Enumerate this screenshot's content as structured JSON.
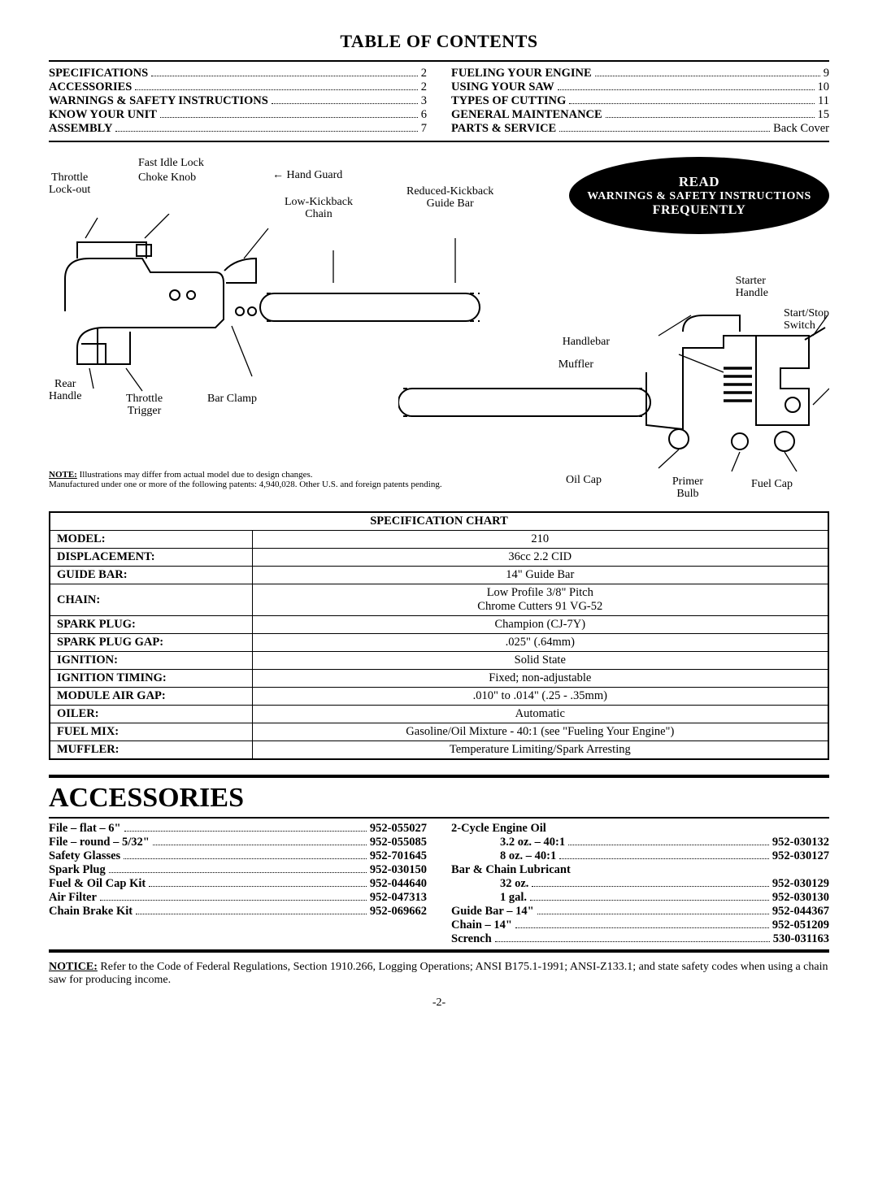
{
  "title": "TABLE OF CONTENTS",
  "toc_left": [
    {
      "label": "SPECIFICATIONS",
      "page": "2"
    },
    {
      "label": "ACCESSORIES",
      "page": "2"
    },
    {
      "label": "WARNINGS & SAFETY INSTRUCTIONS",
      "page": "3"
    },
    {
      "label": "KNOW YOUR UNIT",
      "page": "6"
    },
    {
      "label": "ASSEMBLY",
      "page": "7"
    }
  ],
  "toc_right": [
    {
      "label": "FUELING YOUR ENGINE",
      "page": "9"
    },
    {
      "label": "USING YOUR SAW",
      "page": "10"
    },
    {
      "label": "TYPES OF CUTTING",
      "page": "11"
    },
    {
      "label": "GENERAL MAINTENANCE",
      "page": "15"
    },
    {
      "label": "PARTS & SERVICE",
      "page": "Back Cover"
    }
  ],
  "labels": {
    "fast_idle": "Fast Idle Lock",
    "choke": "Choke Knob",
    "throttle_lock": "Throttle\nLock-out",
    "hand_guard": "Hand Guard",
    "low_kick": "Low-Kickback\nChain",
    "reduced_kick": "Reduced-Kickback\nGuide Bar",
    "rear_handle": "Rear\nHandle",
    "throttle_trigger": "Throttle\nTrigger",
    "bar_clamp": "Bar Clamp",
    "starter_handle": "Starter\nHandle",
    "start_stop": "Start/Stop\nSwitch",
    "handlebar": "Handlebar",
    "muffler": "Muffler",
    "oil_cap": "Oil Cap",
    "primer": "Primer\nBulb",
    "fuel_cap": "Fuel Cap"
  },
  "bubble": {
    "l1": "READ",
    "l2": "WARNINGS & SAFETY INSTRUCTIONS",
    "l3": "FREQUENTLY"
  },
  "note1": "Illustrations may differ from actual model due to design changes.",
  "note2": "Manufactured under one or more of the following patents: 4,940,028. Other U.S. and foreign patents pending.",
  "spec_title": "SPECIFICATION CHART",
  "spec": [
    {
      "k": "MODEL:",
      "v": "210"
    },
    {
      "k": "DISPLACEMENT:",
      "v": "36cc 2.2 CID"
    },
    {
      "k": "GUIDE BAR:",
      "v": "14\" Guide Bar"
    },
    {
      "k": "CHAIN:",
      "v": "Low Profile 3/8\" Pitch\nChrome Cutters 91 VG-52"
    },
    {
      "k": "SPARK PLUG:",
      "v": "Champion (CJ-7Y)"
    },
    {
      "k": "SPARK PLUG GAP:",
      "v": ".025\" (.64mm)"
    },
    {
      "k": "IGNITION:",
      "v": "Solid State"
    },
    {
      "k": "IGNITION TIMING:",
      "v": "Fixed; non-adjustable"
    },
    {
      "k": "MODULE AIR GAP:",
      "v": ".010\" to .014\" (.25 - .35mm)"
    },
    {
      "k": "OILER:",
      "v": "Automatic"
    },
    {
      "k": "FUEL MIX:",
      "v": "Gasoline/Oil Mixture - 40:1 (see \"Fueling Your Engine\")"
    },
    {
      "k": "MUFFLER:",
      "v": "Temperature Limiting/Spark Arresting"
    }
  ],
  "acc_title": "ACCESSORIES",
  "acc_left": [
    {
      "l": "File – flat – 6\"",
      "p": "952-055027"
    },
    {
      "l": "File – round – 5/32\"",
      "p": "952-055085"
    },
    {
      "l": "Safety Glasses",
      "p": "952-701645"
    },
    {
      "l": "Spark Plug",
      "p": "952-030150"
    },
    {
      "l": "Fuel & Oil Cap Kit",
      "p": "952-044640"
    },
    {
      "l": "Air Filter",
      "p": "952-047313"
    },
    {
      "l": "Chain Brake Kit",
      "p": "952-069662"
    }
  ],
  "acc_right_heads": {
    "oil": "2-Cycle Engine Oil",
    "lube": "Bar & Chain Lubricant"
  },
  "acc_right": [
    {
      "l": "3.2 oz. – 40:1",
      "p": "952-030132",
      "indent": true
    },
    {
      "l": "8 oz. – 40:1",
      "p": "952-030127",
      "indent": true
    },
    {
      "l": "32 oz.",
      "p": "952-030129",
      "indent": true,
      "after_head": true
    },
    {
      "l": "1 gal.",
      "p": "952-030130",
      "indent": true
    },
    {
      "l": "Guide Bar – 14\"",
      "p": "952-044367"
    },
    {
      "l": "Chain – 14\"",
      "p": "952-051209"
    },
    {
      "l": "Scrench",
      "p": "530-031163"
    }
  ],
  "notice": "Refer to the Code of Federal Regulations, Section 1910.266, Logging Operations; ANSI B175.1-1991; ANSI-Z133.1; and state safety codes when using a chain saw for producing income.",
  "pagenum": "-2-",
  "colors": {
    "ink": "#000000",
    "paper": "#ffffff"
  }
}
